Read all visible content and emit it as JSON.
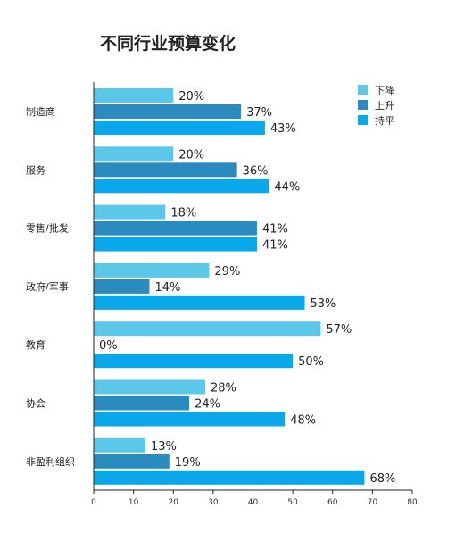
{
  "chart_data": {
    "type": "bar",
    "orientation": "horizontal",
    "title": "不同行业预算变化",
    "categories": [
      "制造商",
      "服务",
      "零售/批发",
      "政府/军事",
      "教育",
      "协会",
      "非盈利组织"
    ],
    "series": [
      {
        "name": "下降",
        "color": "#5bc8ea",
        "values": [
          20,
          20,
          18,
          29,
          57,
          28,
          13
        ]
      },
      {
        "name": "上升",
        "color": "#2a8bbf",
        "values": [
          37,
          36,
          41,
          14,
          0,
          24,
          19
        ]
      },
      {
        "name": "持平",
        "color": "#0aa8ea",
        "values": [
          43,
          44,
          41,
          53,
          50,
          48,
          68
        ]
      }
    ],
    "value_suffix": "%",
    "xlim": [
      0,
      80
    ],
    "xticks": [
      0,
      10,
      20,
      30,
      40,
      50,
      60,
      70,
      80
    ],
    "legend_position": "top-right",
    "grid": false
  }
}
